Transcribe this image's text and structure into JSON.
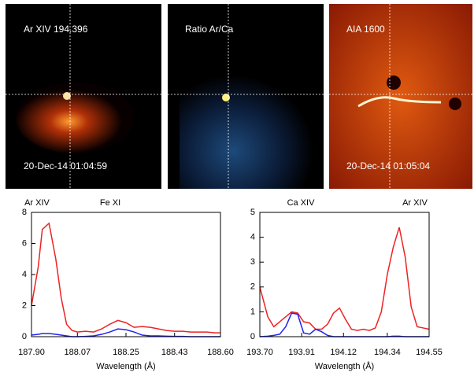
{
  "panels": [
    {
      "label": "Ar XIV 194.396",
      "timestamp": "20-Dec-14 01:04:59"
    },
    {
      "label": "Ratio Ar/Ca"
    },
    {
      "label": "AIA 1600",
      "timestamp": "20-Dec-14 01:05:04"
    }
  ],
  "chart_data": [
    {
      "type": "line",
      "xlabel": "Wavelength (Å)",
      "annotations": [
        "Ar XIV",
        "Fe XI"
      ],
      "x": [
        187.9,
        187.925,
        187.94,
        187.965,
        187.99,
        188.01,
        188.03,
        188.05,
        188.07,
        188.1,
        188.13,
        188.16,
        188.19,
        188.22,
        188.25,
        188.28,
        188.31,
        188.34,
        188.37,
        188.4,
        188.43,
        188.46,
        188.49,
        188.52,
        188.55,
        188.58,
        188.6
      ],
      "series": [
        {
          "color": "#ee2222",
          "values": [
            2.0,
            4.5,
            6.9,
            7.3,
            5.0,
            2.5,
            0.8,
            0.4,
            0.3,
            0.35,
            0.3,
            0.5,
            0.8,
            1.05,
            0.9,
            0.6,
            0.65,
            0.6,
            0.5,
            0.4,
            0.35,
            0.35,
            0.3,
            0.3,
            0.3,
            0.25,
            0.25
          ]
        },
        {
          "color": "#2222ee",
          "values": [
            0.1,
            0.15,
            0.2,
            0.2,
            0.15,
            0.1,
            0.05,
            0.0,
            0.0,
            0.02,
            0.05,
            0.15,
            0.3,
            0.5,
            0.45,
            0.3,
            0.1,
            0.05,
            0.05,
            0.03,
            0.02,
            0.02,
            0.0,
            0.0,
            0.0,
            0.0,
            0.0
          ]
        }
      ],
      "xlim": [
        187.9,
        188.6
      ],
      "xticks": [
        {
          "value": 187.9,
          "label": "187.90"
        },
        {
          "value": 188.07,
          "label": "188.07"
        },
        {
          "value": 188.25,
          "label": "188.25"
        },
        {
          "value": 188.43,
          "label": "188.43"
        },
        {
          "value": 188.6,
          "label": "188.60"
        }
      ],
      "ylim": [
        0,
        8
      ],
      "yticks": [
        0,
        2,
        4,
        6,
        8
      ]
    },
    {
      "type": "line",
      "xlabel": "Wavelength (Å)",
      "annotations": [
        "Ca XIV",
        "Ar XIV"
      ],
      "x": [
        193.7,
        193.74,
        193.77,
        193.8,
        193.83,
        193.86,
        193.89,
        193.92,
        193.95,
        193.98,
        194.01,
        194.04,
        194.07,
        194.1,
        194.13,
        194.16,
        194.19,
        194.22,
        194.25,
        194.28,
        194.31,
        194.34,
        194.37,
        194.4,
        194.43,
        194.46,
        194.49,
        194.52,
        194.55
      ],
      "series": [
        {
          "color": "#ee2222",
          "values": [
            2.0,
            0.8,
            0.4,
            0.6,
            0.8,
            1.0,
            0.95,
            0.6,
            0.55,
            0.3,
            0.3,
            0.5,
            0.95,
            1.15,
            0.7,
            0.3,
            0.25,
            0.3,
            0.25,
            0.35,
            1.0,
            2.5,
            3.6,
            4.4,
            3.2,
            1.2,
            0.4,
            0.35,
            0.3
          ]
        },
        {
          "color": "#2222ee",
          "values": [
            0.0,
            0.02,
            0.05,
            0.1,
            0.4,
            0.95,
            0.9,
            0.15,
            0.1,
            0.3,
            0.2,
            0.05,
            0.0,
            0.0,
            0.0,
            0.0,
            0.0,
            0.0,
            0.0,
            0.0,
            0.0,
            0.0,
            0.02,
            0.02,
            0.0,
            0.0,
            0.0,
            0.0,
            0.0
          ]
        }
      ],
      "xlim": [
        193.7,
        194.55
      ],
      "xticks": [
        {
          "value": 193.7,
          "label": "193.70"
        },
        {
          "value": 193.91,
          "label": "193.91"
        },
        {
          "value": 194.12,
          "label": "194.12"
        },
        {
          "value": 194.34,
          "label": "194.34"
        },
        {
          "value": 194.55,
          "label": "194.55"
        }
      ],
      "ylim": [
        0,
        5
      ],
      "yticks": [
        0,
        1,
        2,
        3,
        4,
        5
      ]
    }
  ]
}
